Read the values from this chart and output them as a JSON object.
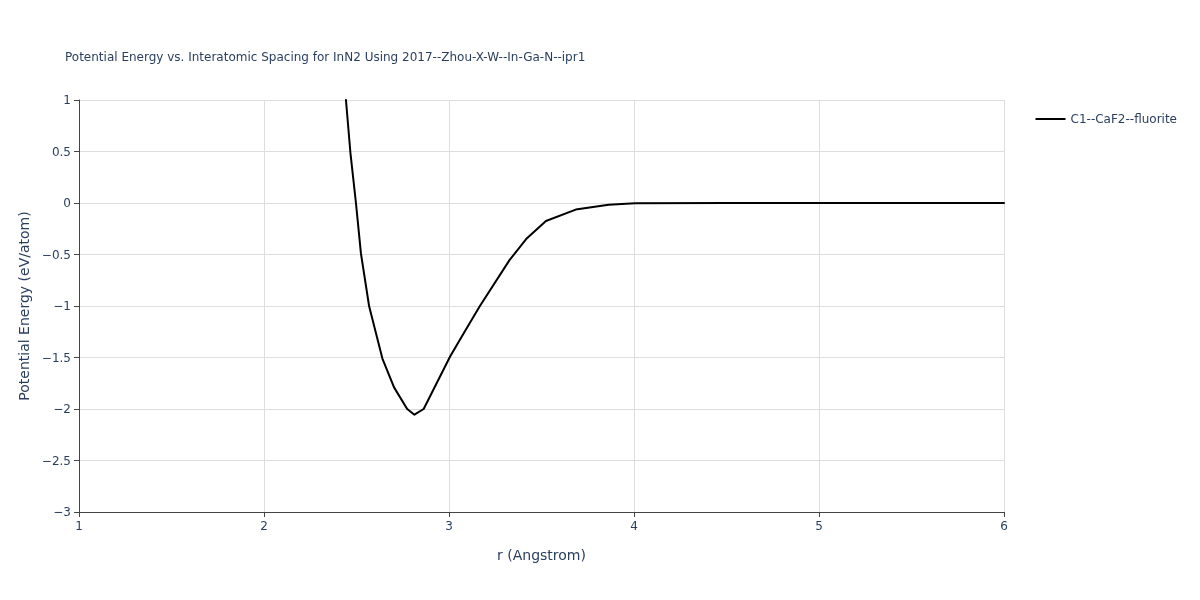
{
  "chart_data": {
    "type": "line",
    "title": "Potential Energy vs. Interatomic Spacing for InN2 Using 2017--Zhou-X-W--In-Ga-N--ipr1",
    "xlabel": "r (Angstrom)",
    "ylabel": "Potential Energy (eV/atom)",
    "series": [
      {
        "name": "C1--CaF2--fluorite",
        "color": "#000000",
        "x": [
          2.443,
          2.467,
          2.497,
          2.524,
          2.568,
          2.64,
          2.703,
          2.774,
          2.813,
          2.863,
          3.006,
          3.078,
          3.167,
          3.327,
          3.417,
          3.524,
          3.685,
          3.863,
          4.006,
          4.5,
          5,
          5.5,
          6
        ],
        "values": [
          1,
          0.49,
          0,
          -0.49,
          -1.0,
          -1.51,
          -1.79,
          -2.0,
          -2.055,
          -2.0,
          -1.49,
          -1.27,
          -1.0,
          -0.555,
          -0.35,
          -0.175,
          -0.064,
          -0.016,
          -0.003,
          0,
          0,
          0,
          0
        ]
      }
    ],
    "xlim": [
      1,
      6
    ],
    "xticks": [
      1,
      2,
      3,
      4,
      5,
      6
    ],
    "ylim": [
      -3,
      1
    ],
    "yticks": [
      -3,
      -2.5,
      -2,
      -1.5,
      -1,
      -0.5,
      0,
      0.5,
      1
    ],
    "grid": true,
    "legend": "top right",
    "marker": "none",
    "line_style": "solid"
  }
}
